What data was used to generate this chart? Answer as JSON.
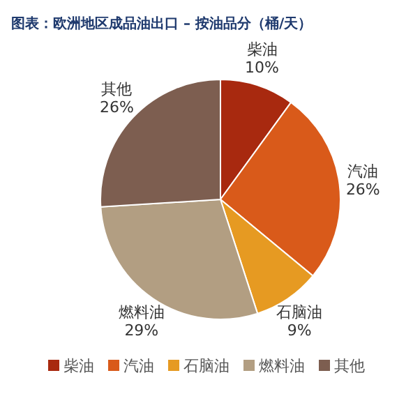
{
  "chart_data": {
    "type": "pie",
    "title": "图表：欧洲地区成品油出口 – 按油品分（桶/天）",
    "categories": [
      "柴油",
      "汽油",
      "石脑油",
      "燃料油",
      "其他"
    ],
    "values": [
      10,
      26,
      9,
      29,
      26
    ],
    "value_labels": [
      "10%",
      "26%",
      "9%",
      "29%",
      "26%"
    ],
    "colors": [
      "#a8290f",
      "#d95a1a",
      "#e69a22",
      "#b29e82",
      "#7d5e50"
    ],
    "legend": "bottom"
  }
}
